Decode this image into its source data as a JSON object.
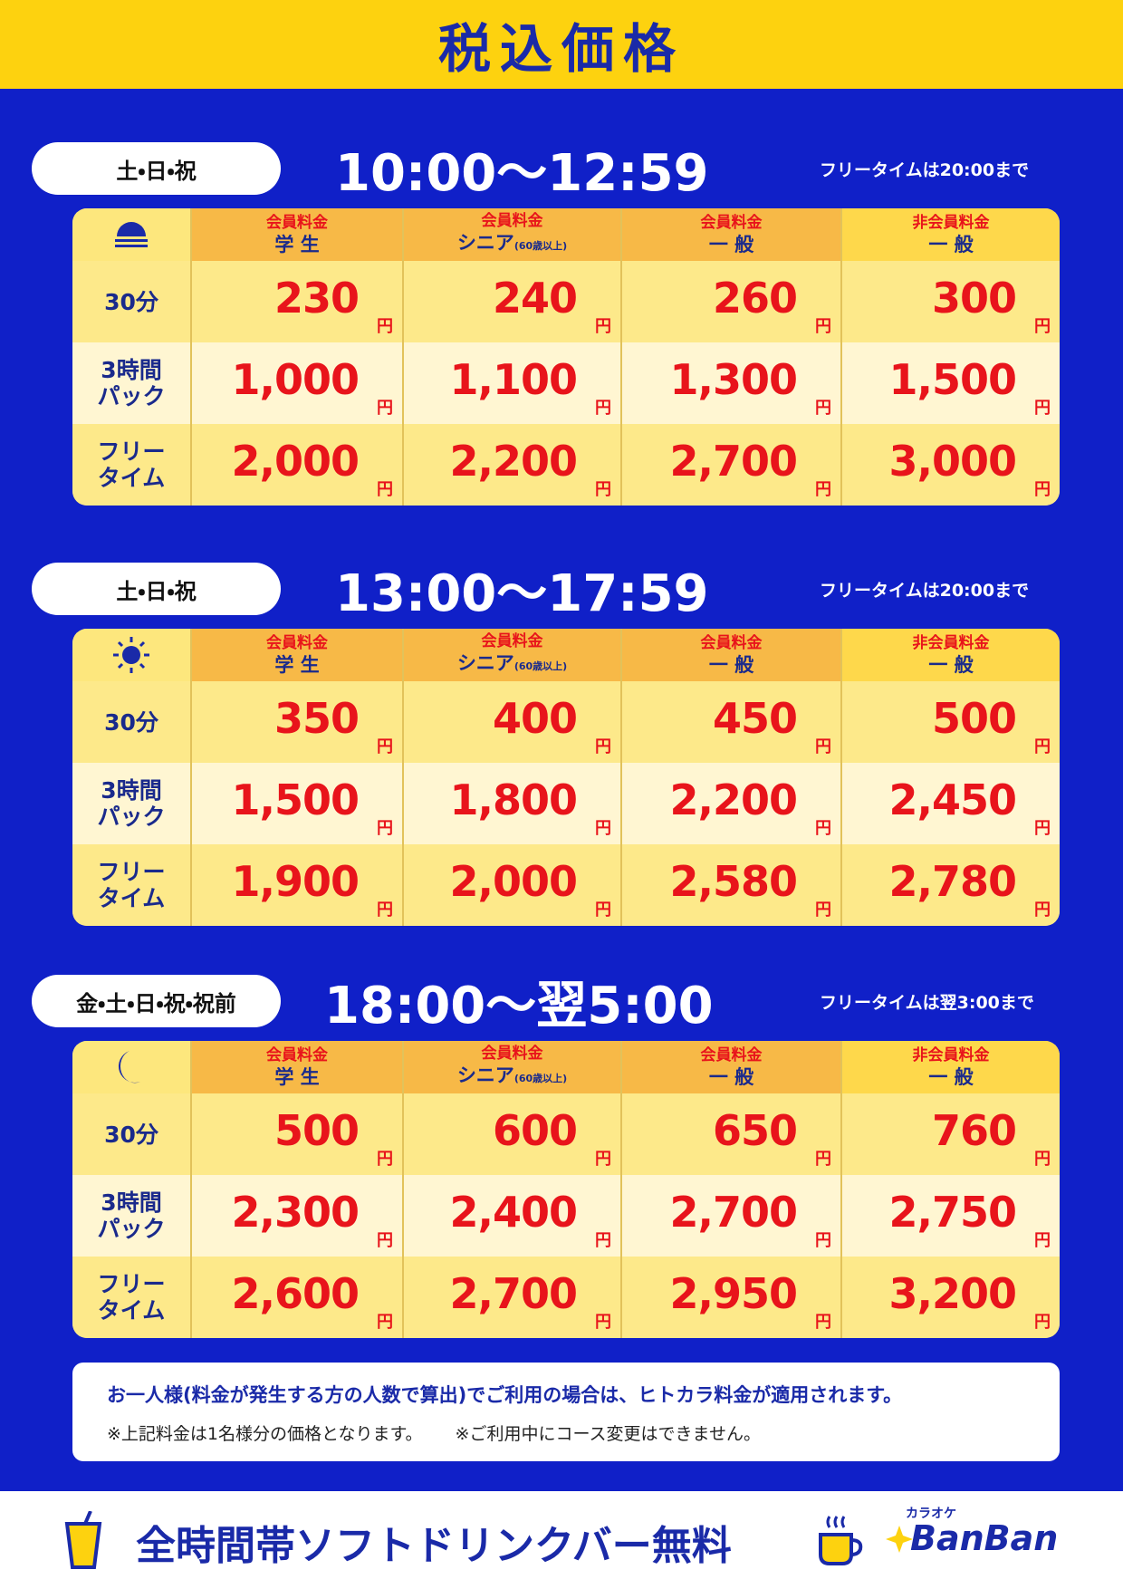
{
  "header": {
    "title": "税込価格"
  },
  "unit": "円",
  "sections": [
    {
      "days": "土・日・祝",
      "time": "10:00〜12:59",
      "note": "フリータイムは20:00まで",
      "columns": [
        {
          "type": "会員料金",
          "name": "学 生"
        },
        {
          "type": "会員料金",
          "name": "シニア",
          "sub": "(60歳以上)"
        },
        {
          "type": "会員料金",
          "name": "一 般"
        },
        {
          "type": "非会員料金",
          "name": "一 般"
        }
      ],
      "rows": [
        {
          "label": [
            "30分"
          ],
          "prices": [
            "230",
            "240",
            "260",
            "300"
          ]
        },
        {
          "label": [
            "3時間",
            "パック"
          ],
          "prices": [
            "1,000",
            "1,100",
            "1,300",
            "1,500"
          ]
        },
        {
          "label": [
            "フリー",
            "タイム"
          ],
          "prices": [
            "2,000",
            "2,200",
            "2,700",
            "3,000"
          ]
        }
      ]
    },
    {
      "days": "土・日・祝",
      "time": "13:00〜17:59",
      "note": "フリータイムは20:00まで",
      "columns": [
        {
          "type": "会員料金",
          "name": "学 生"
        },
        {
          "type": "会員料金",
          "name": "シニア",
          "sub": "(60歳以上)"
        },
        {
          "type": "会員料金",
          "name": "一 般"
        },
        {
          "type": "非会員料金",
          "name": "一 般"
        }
      ],
      "rows": [
        {
          "label": [
            "30分"
          ],
          "prices": [
            "350",
            "400",
            "450",
            "500"
          ]
        },
        {
          "label": [
            "3時間",
            "パック"
          ],
          "prices": [
            "1,500",
            "1,800",
            "2,200",
            "2,450"
          ]
        },
        {
          "label": [
            "フリー",
            "タイム"
          ],
          "prices": [
            "1,900",
            "2,000",
            "2,580",
            "2,780"
          ]
        }
      ]
    },
    {
      "days": "金・土・日・祝・祝前",
      "time": "18:00〜翌5:00",
      "note": "フリータイムは翌3:00まで",
      "columns": [
        {
          "type": "会員料金",
          "name": "学 生"
        },
        {
          "type": "会員料金",
          "name": "シニア",
          "sub": "(60歳以上)"
        },
        {
          "type": "会員料金",
          "name": "一 般"
        },
        {
          "type": "非会員料金",
          "name": "一 般"
        }
      ],
      "rows": [
        {
          "label": [
            "30分"
          ],
          "prices": [
            "500",
            "600",
            "650",
            "760"
          ]
        },
        {
          "label": [
            "3時間",
            "パック"
          ],
          "prices": [
            "2,300",
            "2,400",
            "2,700",
            "2,750"
          ]
        },
        {
          "label": [
            "フリー",
            "タイム"
          ],
          "prices": [
            "2,600",
            "2,700",
            "2,950",
            "3,200"
          ]
        }
      ]
    }
  ],
  "notes": {
    "main": "お一人様(料金が発生する方の人数で算出)でご利用の場合は、ヒトカラ料金が適用されます。",
    "sub": [
      "※上記料金は1名様分の価格となります。",
      "※ご利用中にコース変更はできません。"
    ]
  },
  "footer": {
    "text": "全時間帯ソフトドリンクバー無料",
    "logo_small": "カラオケ",
    "logo": "BanBan"
  }
}
